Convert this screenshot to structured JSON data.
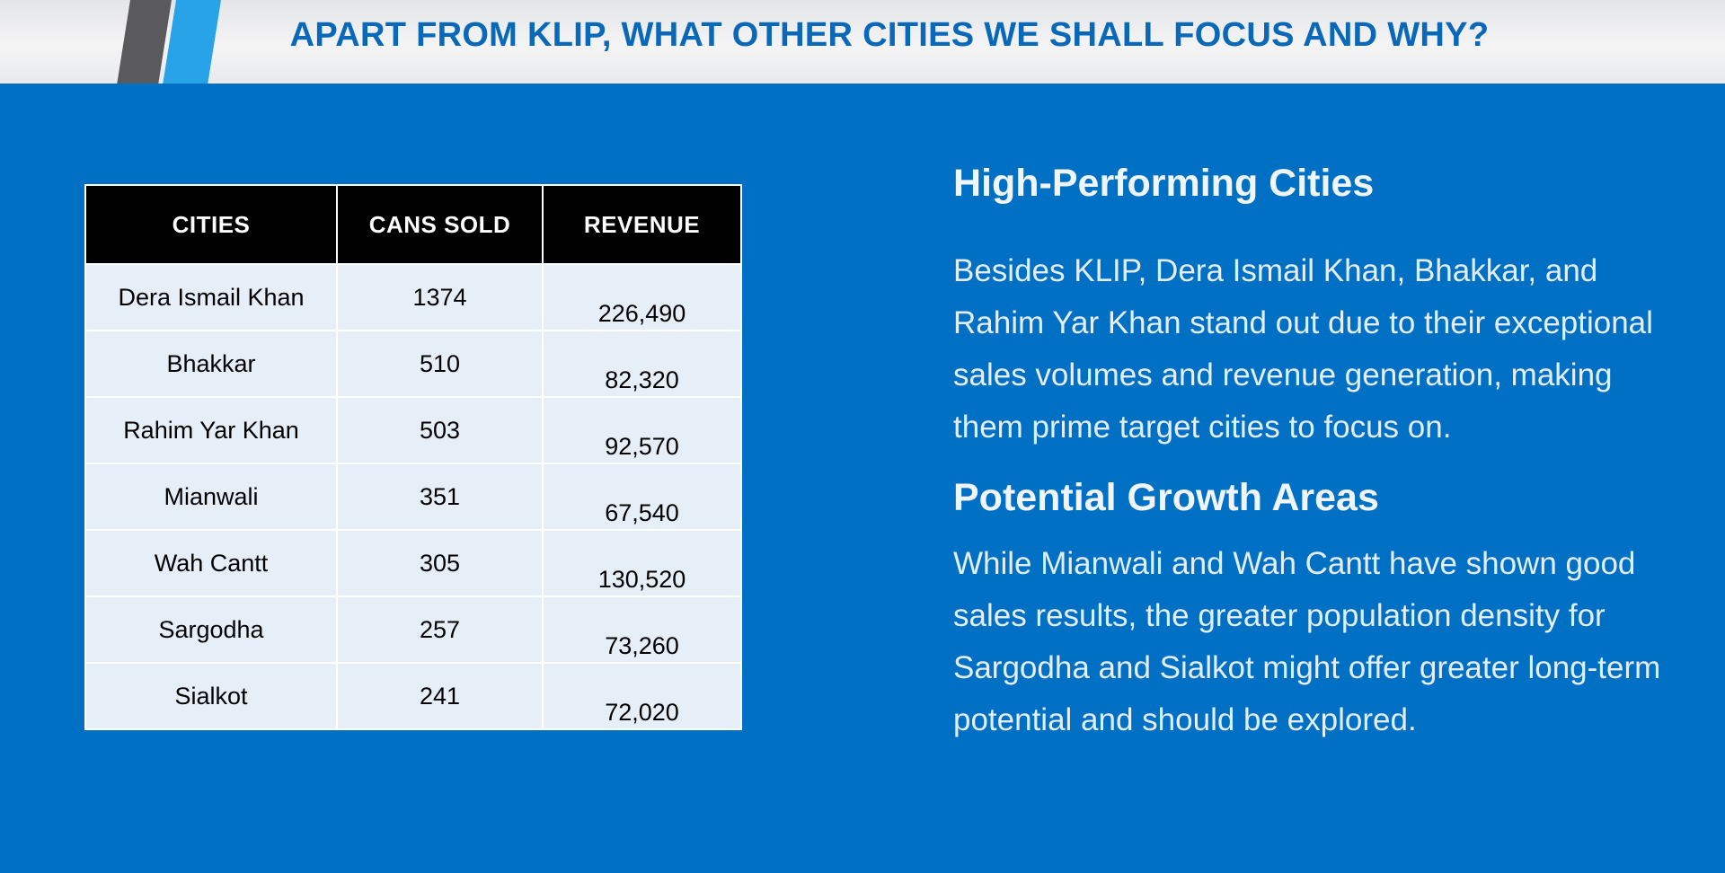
{
  "header": {
    "title": "APART FROM KLIP, WHAT OTHER CITIES WE SHALL FOCUS AND WHY?"
  },
  "table": {
    "columns": [
      "CITIES",
      "CANS SOLD",
      "REVENUE"
    ],
    "rows": [
      {
        "city": "Dera Ismail Khan",
        "cans": "1374",
        "revenue": "226,490"
      },
      {
        "city": "Bhakkar",
        "cans": "510",
        "revenue": "82,320"
      },
      {
        "city": "Rahim Yar Khan",
        "cans": "503",
        "revenue": "92,570"
      },
      {
        "city": "Mianwali",
        "cans": "351",
        "revenue": "67,540"
      },
      {
        "city": "Wah Cantt",
        "cans": "305",
        "revenue": "130,520"
      },
      {
        "city": "Sargodha",
        "cans": "257",
        "revenue": "73,260"
      },
      {
        "city": "Sialkot",
        "cans": "241",
        "revenue": "72,020"
      }
    ]
  },
  "sections": [
    {
      "heading": "High-Performing Cities",
      "body": "Besides KLIP, Dera Ismail Khan, Bhakkar, and Rahim Yar Khan stand out due to their exceptional sales volumes and revenue generation, making them prime target cities to focus on."
    },
    {
      "heading": "Potential Growth Areas",
      "body": "While Mianwali and Wah Cantt have shown good sales results, the greater population density for Sargodha and Sialkot might offer greater long-term potential and should be explored."
    }
  ],
  "colors": {
    "background": "#0070C4",
    "title": "#0a68b8",
    "stripe_dark": "#5a5a5c",
    "stripe_blue": "#29a3e8",
    "table_header": "#000000",
    "table_cell": "#e6eef8"
  }
}
